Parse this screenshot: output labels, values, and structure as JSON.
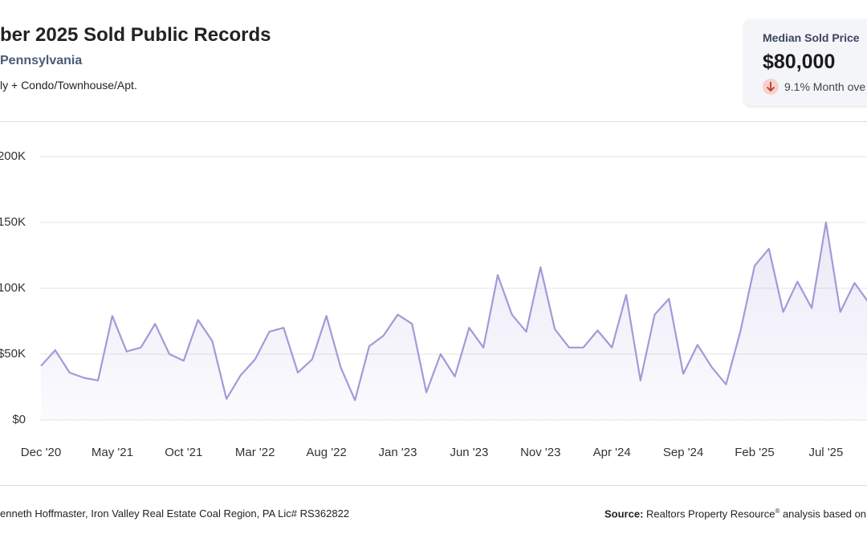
{
  "header": {
    "title": "ber 2025 Sold Public Records",
    "subtitle": "Pennsylvania",
    "property_type": "ly + Condo/Townhouse/Apt."
  },
  "card": {
    "label": "Median Sold Price",
    "value": "$80,000",
    "change": "9.1% Month ove"
  },
  "footer": {
    "agent": "enneth Hoffmaster, Iron Valley Real Estate Coal Region, PA Lic# RS362822",
    "source_label": "Source:",
    "source_text": "Realtors Property Resource",
    "source_mark": "®",
    "source_rest": " analysis based on P"
  },
  "chart_data": {
    "type": "area",
    "categories": [
      "Dec '20",
      null,
      null,
      null,
      null,
      "May '21",
      null,
      null,
      null,
      null,
      "Oct '21",
      null,
      null,
      null,
      null,
      "Mar '22",
      null,
      null,
      null,
      null,
      "Aug '22",
      null,
      null,
      null,
      null,
      "Jan '23",
      null,
      null,
      null,
      null,
      "Jun '23",
      null,
      null,
      null,
      null,
      "Nov '23",
      null,
      null,
      null,
      null,
      "Apr '24",
      null,
      null,
      null,
      null,
      "Sep '24",
      null,
      null,
      null,
      null,
      "Feb '25",
      null,
      null,
      null,
      null,
      "Jul '25",
      null,
      null,
      null
    ],
    "values": [
      41000,
      53000,
      36000,
      32000,
      30000,
      79000,
      52000,
      55000,
      73000,
      50000,
      45000,
      76000,
      60000,
      16000,
      34000,
      46000,
      67000,
      70000,
      36000,
      46000,
      79000,
      40000,
      15000,
      56000,
      64000,
      80000,
      73000,
      21000,
      50000,
      33000,
      70000,
      55000,
      110000,
      80000,
      67000,
      116000,
      69000,
      55000,
      55000,
      68000,
      55000,
      95000,
      30000,
      80000,
      92000,
      35000,
      57000,
      40000,
      27000,
      67000,
      117000,
      130000,
      82000,
      105000,
      85000,
      150000,
      82000,
      104000,
      89000
    ],
    "color": "#a698d8",
    "ylim": [
      0,
      200000
    ],
    "yticks": [
      {
        "value": 0,
        "label": "$0"
      },
      {
        "value": 50000,
        "label": "$50K"
      },
      {
        "value": 100000,
        "label": "100K"
      },
      {
        "value": 150000,
        "label": "150K"
      },
      {
        "value": 200000,
        "label": "200K"
      }
    ],
    "grid": true
  }
}
